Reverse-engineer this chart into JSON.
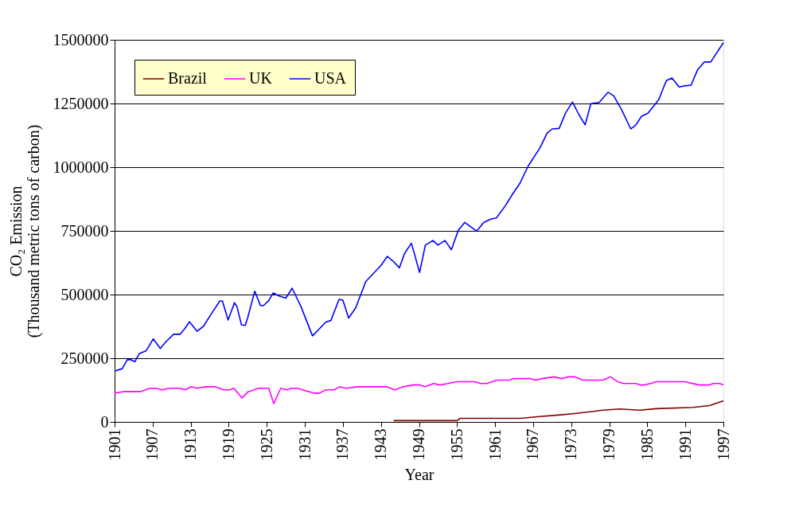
{
  "chart_data": {
    "type": "line",
    "xlabel": "Year",
    "ylabel": "CO₂ Emission\n(Thousand metric tons of carbon)",
    "xlim": [
      1901,
      1997
    ],
    "xticks": [
      1901,
      1907,
      1913,
      1919,
      1925,
      1931,
      1937,
      1943,
      1949,
      1955,
      1961,
      1967,
      1973,
      1979,
      1985,
      1991,
      1997
    ],
    "ylim": [
      0,
      1500000
    ],
    "yticks": [
      0,
      250000,
      500000,
      750000,
      1000000,
      1250000,
      1500000
    ],
    "grid": "y",
    "legend": "top left",
    "marker": "none",
    "line_style": "solid",
    "series": [
      {
        "name": "Brazil",
        "color": "#800000",
        "x": [
          1945,
          1955,
          1955.5,
          1965,
          1968,
          1971,
          1973.5,
          1976,
          1978,
          1980.6,
          1983.8,
          1986.4,
          1992.2,
          1994.8,
          1997
        ],
        "values": [
          5000,
          5000,
          14000,
          14000,
          21000,
          27000,
          33000,
          40000,
          46000,
          51000,
          46000,
          52000,
          57000,
          64000,
          83000
        ]
      },
      {
        "name": "UK",
        "color": "#ff00ff",
        "x": [
          1901,
          1902.4,
          1905,
          1906.6,
          1907.6,
          1908.5,
          1909.5,
          1911.4,
          1912.1,
          1913.1,
          1914,
          1915.3,
          1916.9,
          1918.2,
          1919.2,
          1919.8,
          1921.1,
          1922.1,
          1923,
          1923.7,
          1925.3,
          1926.1,
          1927.2,
          1928.2,
          1928.8,
          1929.8,
          1932.4,
          1933.3,
          1934.3,
          1935.6,
          1936.5,
          1937.5,
          1939.4,
          1943.9,
          1945.2,
          1946.5,
          1948.1,
          1949.1,
          1950,
          1951.3,
          1952.3,
          1953.6,
          1954.9,
          1957.8,
          1958.7,
          1959.7,
          1961.3,
          1963.2,
          1963.9,
          1966.5,
          1967.4,
          1968.4,
          1970.3,
          1971.6,
          1972.6,
          1973.5,
          1974.8,
          1978,
          1979.2,
          1980.3,
          1981.3,
          1983.2,
          1983.9,
          1984.5,
          1985.5,
          1986.4,
          1990.9,
          1993.2,
          1994.8,
          1995.4,
          1996.4,
          1997
        ],
        "values": [
          113000,
          119000,
          119000,
          132000,
          132000,
          126000,
          132000,
          132000,
          126000,
          138000,
          132000,
          138000,
          138000,
          126000,
          126000,
          132000,
          94000,
          119000,
          126000,
          132000,
          132000,
          72000,
          132000,
          126000,
          132000,
          132000,
          113000,
          113000,
          126000,
          126000,
          138000,
          132000,
          138000,
          138000,
          126000,
          138000,
          145000,
          145000,
          138000,
          151000,
          145000,
          151000,
          158000,
          158000,
          151000,
          151000,
          164000,
          164000,
          170000,
          170000,
          164000,
          170000,
          177000,
          170000,
          177000,
          177000,
          164000,
          164000,
          177000,
          158000,
          151000,
          151000,
          145000,
          145000,
          151000,
          158000,
          158000,
          145000,
          145000,
          151000,
          151000,
          145000
        ]
      },
      {
        "name": "USA",
        "color": "#0000ff",
        "x": [
          1901,
          1902.2,
          1903,
          1903.6,
          1904.2,
          1904.9,
          1906,
          1907.1,
          1908.2,
          1909.1,
          1910.3,
          1911.3,
          1912.1,
          1912.8,
          1914,
          1915,
          1916.3,
          1917.6,
          1918,
          1918.9,
          1919.9,
          1920.3,
          1921,
          1921.6,
          1922,
          1923.1,
          1924,
          1924.5,
          1925.3,
          1926,
          1927,
          1928,
          1929,
          1930.4,
          1932.2,
          1933,
          1934.3,
          1935.1,
          1936.4,
          1937,
          1937.9,
          1939,
          1940.6,
          1943,
          1944,
          1945,
          1945.9,
          1946.7,
          1947.8,
          1949.1,
          1950,
          1951.2,
          1952,
          1953.1,
          1954.1,
          1955.2,
          1956.2,
          1958.1,
          1959.2,
          1960.3,
          1961.2,
          1962.6,
          1963.9,
          1964.9,
          1966.2,
          1968.1,
          1969.2,
          1970,
          1971.1,
          1972.1,
          1973.2,
          1974.2,
          1975.2,
          1976.1,
          1977.4,
          1978.8,
          1979.7,
          1980.9,
          1982.4,
          1983.2,
          1984.1,
          1985.1,
          1986.8,
          1988,
          1988.9,
          1990,
          1990.8,
          1991.9,
          1992.9,
          1994,
          1995,
          1997
        ],
        "values": [
          199000,
          209000,
          244000,
          244000,
          236000,
          268000,
          280000,
          326000,
          288000,
          315000,
          344000,
          344000,
          367000,
          393000,
          356000,
          375000,
          426000,
          475000,
          475000,
          400000,
          468000,
          452000,
          381000,
          379000,
          410000,
          513000,
          457000,
          457000,
          476000,
          506000,
          494000,
          486000,
          525000,
          452000,
          338000,
          358000,
          392000,
          398000,
          481000,
          478000,
          408000,
          447000,
          551000,
          614000,
          650000,
          629000,
          605000,
          660000,
          702000,
          587000,
          694000,
          712000,
          694000,
          712000,
          676000,
          752000,
          783000,
          749000,
          783000,
          796000,
          801000,
          848000,
          900000,
          936000,
          1004000,
          1077000,
          1134000,
          1150000,
          1152000,
          1212000,
          1256000,
          1207000,
          1166000,
          1249000,
          1254000,
          1294000,
          1280000,
          1228000,
          1150000,
          1166000,
          1200000,
          1212000,
          1265000,
          1340000,
          1350000,
          1315000,
          1319000,
          1322000,
          1381000,
          1413000,
          1413000,
          1489000
        ]
      }
    ]
  }
}
